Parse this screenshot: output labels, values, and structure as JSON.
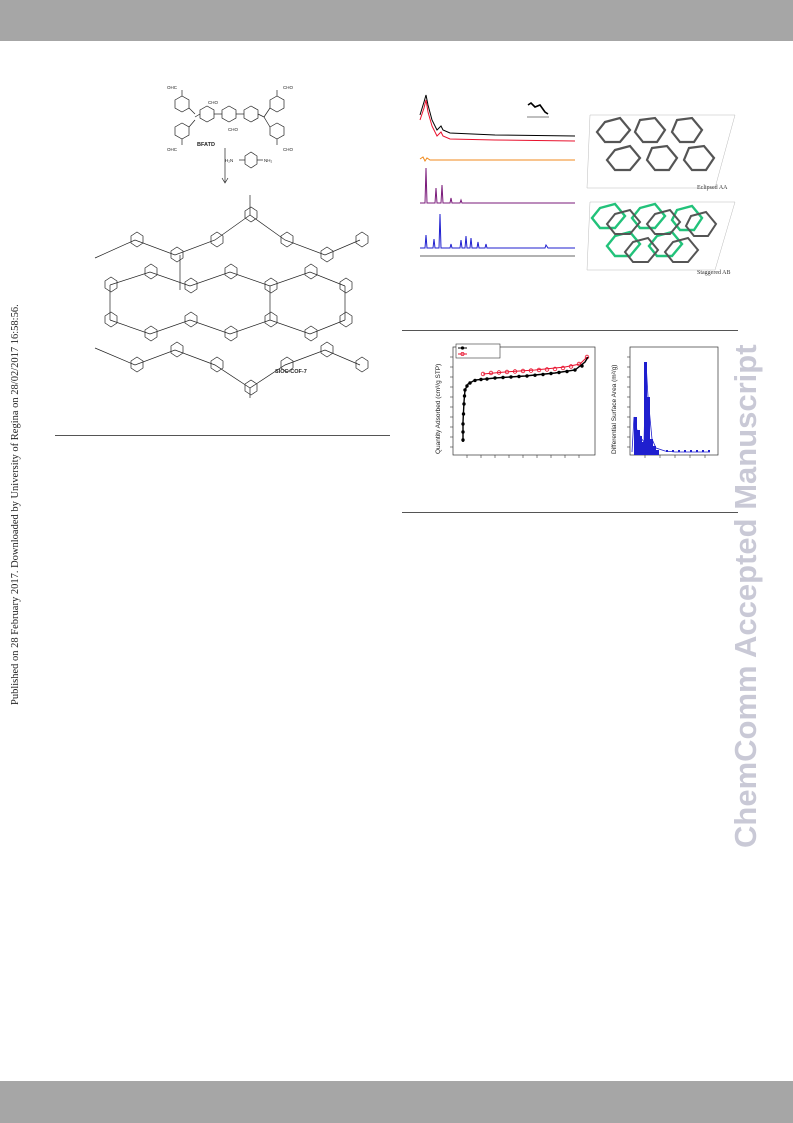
{
  "watermark": {
    "text": "ChemComm Accepted Manuscript",
    "color": "#c9c9d6"
  },
  "publication_note": "Published on 28 February 2017. Downloaded by University of Regina on 28/02/2017 16:58:56.",
  "scheme": {
    "monomer_label": "BFATD",
    "product_label": "SIOC-COF-7",
    "cho": "CHO",
    "ohc": "OHC",
    "nh2_left": "H₂N",
    "nh2_right": "NH₂"
  },
  "figure2": {
    "model_aa_label": "Eclipsed AA",
    "model_ab_label": "Staggered AB",
    "colors": {
      "exp_black": "#000000",
      "exp_red": "#e8112d",
      "orange": "#f08a1c",
      "purple": "#7a1a7a",
      "blue": "#1f1fcf",
      "green": "#22c27a"
    }
  },
  "figure3": {
    "left_ylabel": "Quantity Adsorbed (cm³/g STP)",
    "right_ylabel": "Differential Surface Area (m²/g)",
    "colors": {
      "adsorption": "#000000",
      "desorption": "#e8112d",
      "pore": "#1f1fcf"
    }
  }
}
